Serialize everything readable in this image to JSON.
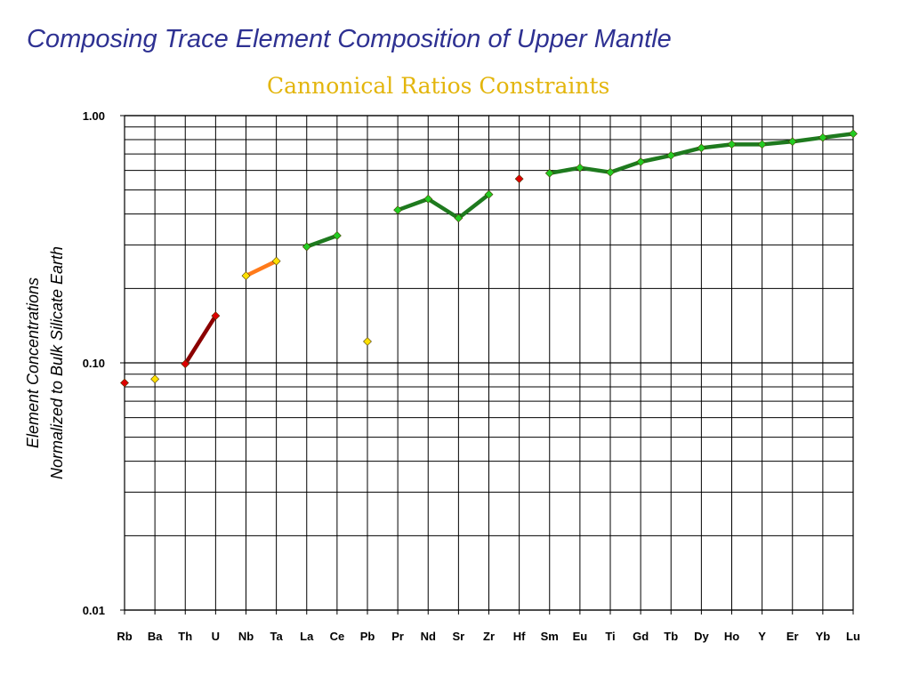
{
  "title": "Composing Trace Element Composition of Upper Mantle",
  "subtitle": "Cannonical Ratios Constraints",
  "chart_data": {
    "type": "line",
    "y_scale": "log",
    "ylim": [
      0.01,
      1.0
    ],
    "y_ticks": [
      {
        "value": 1.0,
        "label": "1.00"
      },
      {
        "value": 0.1,
        "label": "0.10"
      },
      {
        "value": 0.01,
        "label": "0.01"
      }
    ],
    "ylabel_lines": [
      "Element Concentrations",
      "Normalized to Bulk Silicate Earth"
    ],
    "xlabel": "",
    "grid": true,
    "categories": [
      "Rb",
      "Ba",
      "Th",
      "U",
      "Nb",
      "Ta",
      "La",
      "Ce",
      "Pb",
      "Pr",
      "Nd",
      "Sr",
      "Zr",
      "Hf",
      "Sm",
      "Eu",
      "Ti",
      "Gd",
      "Tb",
      "Dy",
      "Ho",
      "Y",
      "Er",
      "Yb",
      "Lu"
    ],
    "colors": {
      "dark_red": "#8b0000",
      "red_marker": "#dd0000",
      "orange": "#ff7a1a",
      "yellow": "#ffe000",
      "green": "#1e7a1e",
      "green_marker": "#22cc22"
    },
    "series": [
      {
        "points": [
          {
            "x": "Rb",
            "y": 0.083
          }
        ],
        "line": "none",
        "marker": "red_marker"
      },
      {
        "points": [
          {
            "x": "Ba",
            "y": 0.086
          }
        ],
        "line": "none",
        "marker": "yellow"
      },
      {
        "points": [
          {
            "x": "Th",
            "y": 0.099
          },
          {
            "x": "U",
            "y": 0.155
          }
        ],
        "line": "dark_red",
        "marker": "red_marker"
      },
      {
        "points": [
          {
            "x": "Nb",
            "y": 0.225
          },
          {
            "x": "Ta",
            "y": 0.258
          }
        ],
        "line": "orange",
        "marker": "yellow"
      },
      {
        "points": [
          {
            "x": "La",
            "y": 0.295
          },
          {
            "x": "Ce",
            "y": 0.327
          }
        ],
        "line": "green",
        "marker": "green_marker"
      },
      {
        "points": [
          {
            "x": "Pb",
            "y": 0.122
          }
        ],
        "line": "none",
        "marker": "yellow"
      },
      {
        "points": [
          {
            "x": "Pr",
            "y": 0.415
          },
          {
            "x": "Nd",
            "y": 0.46
          },
          {
            "x": "Sr",
            "y": 0.385
          },
          {
            "x": "Zr",
            "y": 0.48
          }
        ],
        "line": "green",
        "marker": "green_marker"
      },
      {
        "points": [
          {
            "x": "Hf",
            "y": 0.555
          }
        ],
        "line": "none",
        "marker": "red_marker"
      },
      {
        "points": [
          {
            "x": "Sm",
            "y": 0.585
          },
          {
            "x": "Eu",
            "y": 0.615
          },
          {
            "x": "Ti",
            "y": 0.59
          },
          {
            "x": "Gd",
            "y": 0.65
          },
          {
            "x": "Tb",
            "y": 0.69
          },
          {
            "x": "Dy",
            "y": 0.74
          },
          {
            "x": "Ho",
            "y": 0.765
          },
          {
            "x": "Y",
            "y": 0.765
          },
          {
            "x": "Er",
            "y": 0.785
          },
          {
            "x": "Yb",
            "y": 0.815
          },
          {
            "x": "Lu",
            "y": 0.845
          }
        ],
        "line": "green",
        "marker": "green_marker"
      }
    ]
  }
}
